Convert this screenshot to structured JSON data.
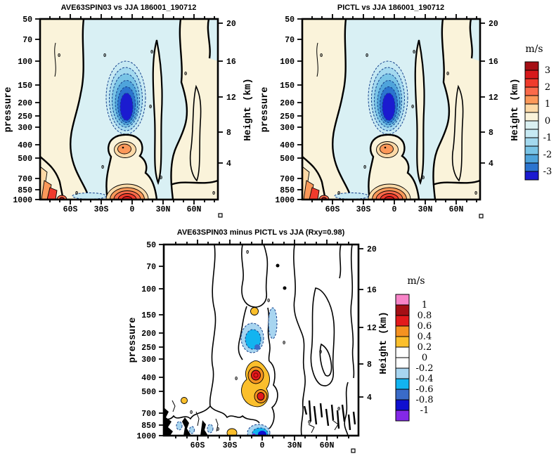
{
  "titles": {
    "top_left": "AVE63SPIN03 vs JJA 186001_190712",
    "top_right": "PICTL vs JJA 186001_190712",
    "bottom": "AVE63SPIN03 minus PICTL vs JJA (Rxy=0.98)"
  },
  "axes": {
    "pressure_label": "pressure",
    "height_label": "Height (km)",
    "pressure_ticks": [
      "50",
      "70",
      "100",
      "150",
      "200",
      "250",
      "300",
      "400",
      "500",
      "700",
      "850",
      "1000"
    ],
    "height_ticks": [
      "20",
      "16",
      "12",
      "8",
      "4"
    ],
    "lat_ticks": [
      "60S",
      "30S",
      "0",
      "30N",
      "60N"
    ],
    "zero_contour_label": "0"
  },
  "colorbar_top": {
    "units": "m/s",
    "tick_labels": [
      "3",
      "2",
      "1",
      "0",
      "-1",
      "-2",
      "-3"
    ],
    "colors": [
      "#a50f15",
      "#d7191c",
      "#f03b2c",
      "#fb6a4a",
      "#fc9859",
      "#fdd9a6",
      "#faf3da",
      "#daf0f2",
      "#c6e9f3",
      "#a3d9ef",
      "#79c4e6",
      "#4fa4db",
      "#2b74cf",
      "#1b1bd0"
    ]
  },
  "colorbar_bottom": {
    "units": "m/s",
    "tick_labels": [
      "1",
      "0.8",
      "0.6",
      "0.4",
      "0.2",
      "0",
      "-0.2",
      "-0.4",
      "-0.6",
      "-0.8",
      "-1"
    ],
    "colors": [
      "#f884c8",
      "#a50f15",
      "#e31a1c",
      "#f59220",
      "#fbbf2c",
      "#ffffff",
      "#ffffff",
      "#a8d5f0",
      "#12b4f0",
      "#3a6bc8",
      "#0f0fd0",
      "#8428e8"
    ]
  },
  "chart_data": [
    {
      "type": "heatmap",
      "subtype": "filled-contour latitude-pressure cross-section",
      "title": "AVE63SPIN03 vs JJA 186001_190712",
      "xlabel": "latitude",
      "x_ticks": [
        "60S",
        "30S",
        "0",
        "30N",
        "60N"
      ],
      "ylabel": "pressure",
      "y_scale": "log",
      "y_ticks": [
        50,
        70,
        100,
        150,
        200,
        250,
        300,
        400,
        500,
        700,
        850,
        1000
      ],
      "y2label": "Height (km)",
      "y2_ticks": [
        20,
        16,
        12,
        8,
        4
      ],
      "units": "m/s",
      "contour_interval": 0.5,
      "color_range": [
        -3,
        3
      ],
      "zero_contour": "thick solid, labeled 0; negative contours dashed",
      "features": [
        {
          "label": "strong negative core",
          "lat_deg": -8,
          "pressure_hPa": 200,
          "value": -3.5
        },
        {
          "label": "positive anomaly blob",
          "lat_deg": -5,
          "pressure_hPa": 420,
          "value": 1.5
        },
        {
          "label": "strong positive core near surface",
          "lat_deg": -5,
          "pressure_hPa": 925,
          "value": 3
        },
        {
          "label": "positive banded region",
          "lat_deg": -75,
          "pressure_hPa": 900,
          "value": 2.5
        },
        {
          "label": "weak negative background (tropics/midlatitudes)",
          "value": -0.25
        },
        {
          "label": "weak positive background (poleward flanks)",
          "value": 0.25
        },
        {
          "label": "shallow negative strip near surface",
          "lat_deg": -45,
          "pressure_hPa": 950,
          "value": -0.7
        }
      ]
    },
    {
      "type": "heatmap",
      "subtype": "filled-contour latitude-pressure cross-section",
      "title": "PICTL vs JJA 186001_190712",
      "xlabel": "latitude",
      "x_ticks": [
        "60S",
        "30S",
        "0",
        "30N",
        "60N"
      ],
      "ylabel": "pressure",
      "y_scale": "log",
      "y_ticks": [
        50,
        70,
        100,
        150,
        200,
        250,
        300,
        400,
        500,
        700,
        850,
        1000
      ],
      "y2label": "Height (km)",
      "y2_ticks": [
        20,
        16,
        12,
        8,
        4
      ],
      "units": "m/s",
      "contour_interval": 0.5,
      "color_range": [
        -3,
        3
      ],
      "zero_contour": "thick solid, labeled 0; negative contours dashed",
      "features": [
        {
          "label": "strong negative core",
          "lat_deg": -8,
          "pressure_hPa": 200,
          "value": -3.5
        },
        {
          "label": "positive anomaly blob",
          "lat_deg": -5,
          "pressure_hPa": 420,
          "value": 1.5
        },
        {
          "label": "strong positive core near surface",
          "lat_deg": -5,
          "pressure_hPa": 925,
          "value": 3
        },
        {
          "label": "positive banded region",
          "lat_deg": -75,
          "pressure_hPa": 900,
          "value": 2.5
        },
        {
          "label": "weak negative background (tropics/midlatitudes)",
          "value": -0.25
        },
        {
          "label": "weak positive background (poleward flanks)",
          "value": 0.25
        }
      ]
    },
    {
      "type": "heatmap",
      "subtype": "filled-contour difference latitude-pressure cross-section",
      "title": "AVE63SPIN03 minus PICTL vs JJA (Rxy=0.98)",
      "xlabel": "latitude",
      "x_ticks": [
        "60S",
        "30S",
        "0",
        "30N",
        "60N"
      ],
      "ylabel": "pressure",
      "y_scale": "log",
      "y_ticks": [
        50,
        70,
        100,
        150,
        200,
        250,
        300,
        400,
        500,
        700,
        850,
        1000
      ],
      "y2label": "Height (km)",
      "y2_ticks": [
        20,
        16,
        12,
        8,
        4
      ],
      "units": "m/s",
      "contour_interval": 0.2,
      "color_range": [
        -1,
        1
      ],
      "pattern_correlation_Rxy": 0.98,
      "features": [
        {
          "label": "positive core (upper)",
          "lat_deg": -5,
          "pressure_hPa": 430,
          "value": 0.9
        },
        {
          "label": "positive core (lower)",
          "lat_deg": -2,
          "pressure_hPa": 600,
          "value": 0.9
        },
        {
          "label": "yellow positive halo around cores",
          "value": 0.3
        },
        {
          "label": "negative blob",
          "lat_deg": -5,
          "pressure_hPa": 230,
          "value": -0.7
        },
        {
          "label": "small positive spot",
          "lat_deg": -8,
          "pressure_hPa": 150,
          "value": 0.3
        },
        {
          "label": "pale negative lens",
          "lat_deg": 3,
          "pressure_hPa": 170,
          "value": -0.3
        },
        {
          "label": "negative spot near surface",
          "lat_deg": 0,
          "pressure_hPa": 950,
          "value": -1
        },
        {
          "label": "small positive spot near surface",
          "lat_deg": -30,
          "pressure_hPa": 980,
          "value": 0.3
        },
        {
          "label": "noisy near-surface differences at high latitudes",
          "value": "±0.2"
        }
      ]
    }
  ]
}
